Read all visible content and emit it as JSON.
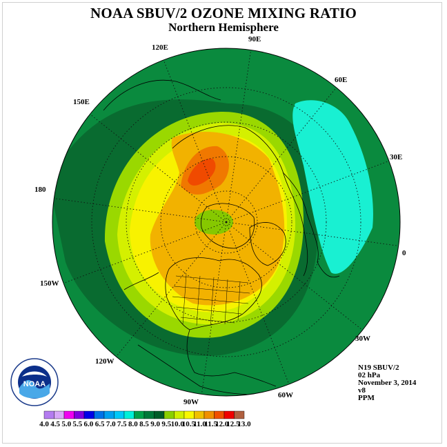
{
  "header": {
    "title": "NOAA SBUV/2 OZONE MIXING RATIO",
    "subtitle": "Northern Hemisphere"
  },
  "map": {
    "projection": "north polar stereographic",
    "longitude_labels": [
      "90E",
      "60E",
      "30E",
      "0",
      "30W",
      "60W",
      "90W",
      "120W",
      "150W",
      "180",
      "150E",
      "120E"
    ],
    "regions": [
      {
        "name": "background-band",
        "color": "#0a8a3e"
      },
      {
        "name": "outer-ring",
        "color": "#096b30"
      },
      {
        "name": "low-cell",
        "color": "#19f0d2"
      },
      {
        "name": "ring-9.5",
        "color": "#9ad800"
      },
      {
        "name": "ring-10.0",
        "color": "#d4f000"
      },
      {
        "name": "ring-10.5",
        "color": "#f8f200"
      },
      {
        "name": "core-11.0",
        "color": "#f2b200"
      },
      {
        "name": "core-11.5",
        "color": "#f07800"
      },
      {
        "name": "pole-minimum",
        "color": "#86c800"
      }
    ]
  },
  "info": {
    "satellite": "N19 SBUV/2",
    "pressure": "02 hPa",
    "date": "November 3, 2014",
    "version": "v8",
    "units": "PPM"
  },
  "colorbar": {
    "ticks": [
      "4.0",
      "4.5",
      "5.0",
      "5.5",
      "6.0",
      "6.5",
      "7.0",
      "7.5",
      "8.0",
      "8.5",
      "9.0",
      "9.5",
      "10.0",
      "10.5",
      "11.0",
      "11.5",
      "12.0",
      "12.5",
      "13.0"
    ],
    "colors": [
      "#b47cf0",
      "#d8a8f8",
      "#f000f0",
      "#8000e0",
      "#0000e8",
      "#0072e8",
      "#00a0f0",
      "#00c8f8",
      "#00f0d8",
      "#00a048",
      "#007838",
      "#005c28",
      "#8ad000",
      "#d0f000",
      "#f8f800",
      "#f0c000",
      "#f09000",
      "#f05000",
      "#f00000",
      "#b06040"
    ]
  },
  "logo": {
    "text": "NOAA",
    "icon": "noaa-logo-icon"
  }
}
